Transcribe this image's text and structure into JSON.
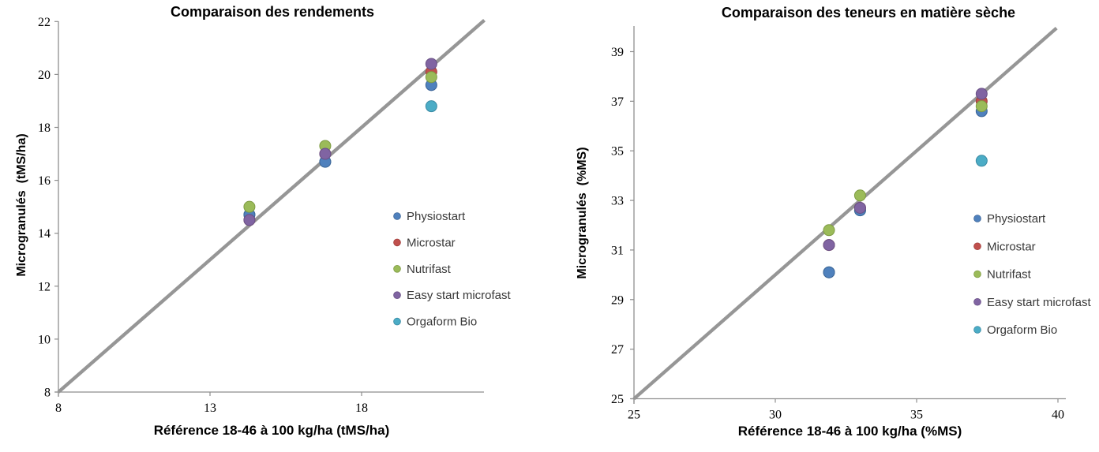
{
  "figure": {
    "background": "#ffffff",
    "axis_color": "#8e8e8e",
    "identity_line_color": "#969696"
  },
  "chart_data": [
    {
      "type": "scatter",
      "title": "Comparaison des rendements",
      "xlabel": "Référence 18-46 à 100 kg/ha (tMS/ha)",
      "ylabel": "Microgranulés  (tMS/ha)",
      "xlim": [
        8,
        22.05
      ],
      "ylim": [
        8,
        22
      ],
      "x_ticks": [
        8,
        13,
        18
      ],
      "y_ticks": [
        8,
        10,
        12,
        14,
        16,
        18,
        20,
        22
      ],
      "grid": false,
      "legend_position": "inside-right-lower",
      "x": [
        14.3,
        16.8,
        20.3
      ],
      "series": [
        {
          "name": "Physiostart",
          "color": "#4F81BD",
          "edge": "#3C6497",
          "values": [
            14.7,
            16.7,
            19.6
          ]
        },
        {
          "name": "Microstar",
          "color": "#C0504D",
          "edge": "#A13F3C",
          "values": [
            14.5,
            17.0,
            20.1
          ]
        },
        {
          "name": "Nutrifast",
          "color": "#9BBB59",
          "edge": "#7E9B43",
          "values": [
            15.0,
            17.3,
            19.9
          ]
        },
        {
          "name": "Easy start microfast",
          "color": "#8064A2",
          "edge": "#695085",
          "values": [
            14.5,
            17.0,
            20.4
          ]
        },
        {
          "name": "Orgaform Bio",
          "color": "#4BACC6",
          "edge": "#3A8AA3",
          "values": [
            14.7,
            16.7,
            18.8
          ]
        }
      ],
      "draw_order": [
        "Orgaform Bio",
        "Microstar",
        "Physiostart",
        "Nutrifast",
        "Easy start microfast"
      ],
      "identity_line": {
        "type": "y=x",
        "from": 8,
        "to": 22.05
      }
    },
    {
      "type": "scatter",
      "title": "Comparaison des teneurs en matière sèche",
      "xlabel": "Référence 18-46 à 100 kg/ha (%MS)",
      "ylabel": "Microgranulés  (%MS)",
      "xlim": [
        25,
        40.3
      ],
      "ylim": [
        25,
        40
      ],
      "x_ticks": [
        25,
        30,
        35,
        40
      ],
      "y_ticks": [
        25,
        27,
        29,
        31,
        33,
        35,
        37,
        39
      ],
      "grid": false,
      "legend_position": "inside-right-lower",
      "x": [
        31.9,
        33.0,
        37.3
      ],
      "series": [
        {
          "name": "Physiostart",
          "color": "#4F81BD",
          "edge": "#3C6497",
          "values": [
            30.1,
            32.6,
            36.6
          ]
        },
        {
          "name": "Microstar",
          "color": "#C0504D",
          "edge": "#A13F3C",
          "values": [
            31.2,
            32.7,
            37.0
          ]
        },
        {
          "name": "Nutrifast",
          "color": "#9BBB59",
          "edge": "#7E9B43",
          "values": [
            31.8,
            33.2,
            36.8
          ]
        },
        {
          "name": "Easy start microfast",
          "color": "#8064A2",
          "edge": "#695085",
          "values": [
            31.2,
            32.7,
            37.3
          ]
        },
        {
          "name": "Orgaform Bio",
          "color": "#4BACC6",
          "edge": "#3A8AA3",
          "values": [
            30.1,
            32.6,
            34.6
          ]
        }
      ],
      "draw_order": [
        "Orgaform Bio",
        "Microstar",
        "Physiostart",
        "Nutrifast",
        "Easy start microfast"
      ],
      "identity_line": {
        "type": "y=x",
        "from": 25,
        "to": 39.95
      }
    }
  ]
}
